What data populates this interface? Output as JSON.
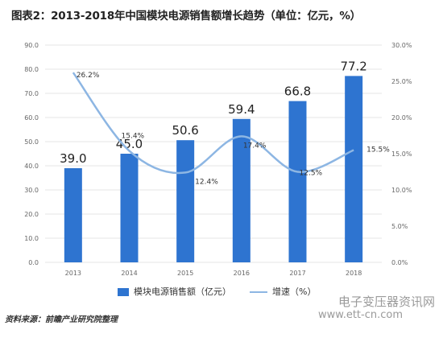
{
  "title": "图表2：2013-2018年中国模块电源销售额增长趋势（单位：亿元，%）",
  "source": "资料来源：前瞻产业研究院整理",
  "watermark": "电子变压器资讯网",
  "watermark_url": "www.ett-cn.com",
  "colors": {
    "bar": "#2E74D0",
    "line": "#8DB6E3",
    "grid": "#E6E6E6"
  },
  "chart_data": {
    "type": "bar",
    "categories": [
      "2013",
      "2014",
      "2015",
      "2016",
      "2017",
      "2018"
    ],
    "series": [
      {
        "name": "模块电源销售额（亿元）",
        "type": "bar",
        "axis": "left",
        "values": [
          39.0,
          45.0,
          50.6,
          59.4,
          66.8,
          77.2
        ],
        "labels": [
          "39.0",
          "45.0",
          "50.6",
          "59.4",
          "66.8",
          "77.2"
        ]
      },
      {
        "name": "增速（%）",
        "type": "line",
        "axis": "right",
        "values": [
          26.2,
          15.4,
          12.4,
          17.4,
          12.5,
          15.5
        ],
        "labels": [
          "26.2%",
          "15.4%",
          "12.4%",
          "17.4%",
          "12.5%",
          "15.5%"
        ]
      }
    ],
    "left_axis": {
      "min": 0,
      "max": 90,
      "step": 10,
      "ticks": [
        "0.0",
        "10.0",
        "20.0",
        "30.0",
        "40.0",
        "50.0",
        "60.0",
        "70.0",
        "80.0",
        "90.0"
      ]
    },
    "right_axis": {
      "min": 0,
      "max": 30,
      "step": 5,
      "ticks": [
        "0.0%",
        "5.0%",
        "10.0%",
        "15.0%",
        "20.0%",
        "25.0%",
        "30.0%"
      ]
    },
    "grid": true,
    "legend_position": "bottom"
  }
}
